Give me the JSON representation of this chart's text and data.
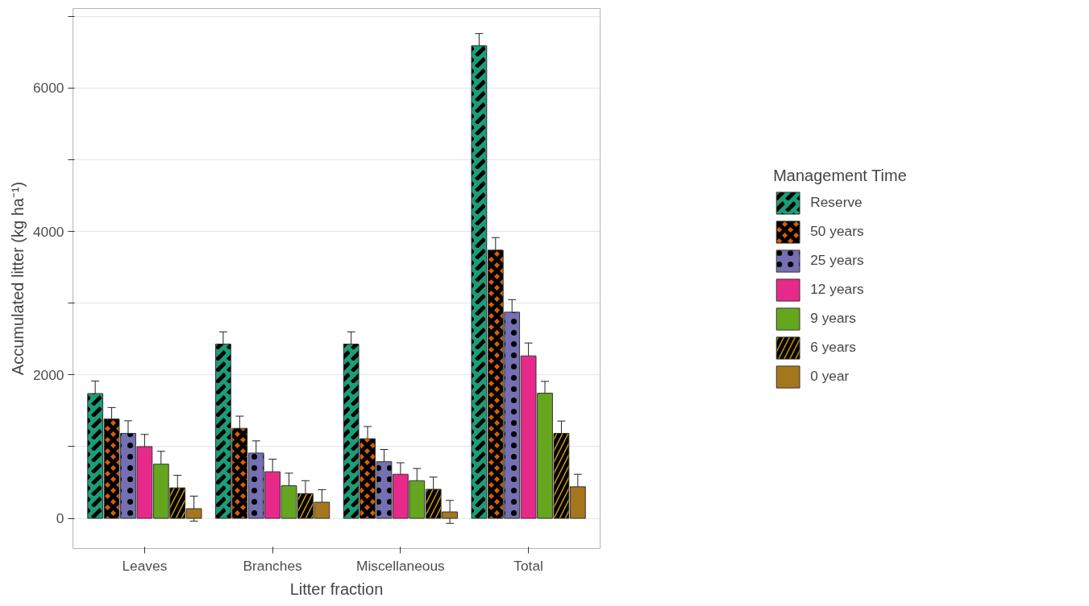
{
  "chart_data": {
    "type": "bar",
    "xlabel": "Litter fraction",
    "ylabel": "Accumulated litter (kg ha⁻¹)",
    "legend_title": "Management Time",
    "categories": [
      "Leaves",
      "Branches",
      "Miscellaneous",
      "Total"
    ],
    "series": [
      {
        "name": "Reserve",
        "color": "#1b9e77",
        "values": [
          1740,
          2430,
          2430,
          6590
        ],
        "errors": [
          175,
          170,
          170,
          170
        ]
      },
      {
        "name": "50 years",
        "color": "#d95f02",
        "values": [
          1385,
          1255,
          1110,
          3740
        ],
        "errors": [
          160,
          170,
          170,
          175
        ]
      },
      {
        "name": "25 years",
        "color": "#7570b3",
        "values": [
          1185,
          910,
          790,
          2875
        ],
        "errors": [
          175,
          170,
          170,
          175
        ]
      },
      {
        "name": "12 years",
        "color": "#e7298a",
        "values": [
          1000,
          650,
          615,
          2265
        ],
        "errors": [
          170,
          175,
          160,
          180
        ]
      },
      {
        "name": "9 years",
        "color": "#66a61e",
        "values": [
          755,
          455,
          525,
          1745
        ],
        "errors": [
          180,
          175,
          170,
          165
        ]
      },
      {
        "name": "6 years",
        "color": "#e6ab02",
        "values": [
          425,
          345,
          405,
          1185
        ],
        "errors": [
          175,
          180,
          170,
          172
        ]
      },
      {
        "name": "0 year",
        "color": "#a6761d",
        "values": [
          135,
          225,
          90,
          440
        ],
        "errors": [
          175,
          175,
          160,
          175
        ]
      }
    ],
    "ylim": [
      -420,
      7110
    ],
    "yticks": [
      0,
      {
        "value": 1000,
        "label": null
      },
      2000,
      {
        "value": 3000,
        "label": null
      },
      4000,
      {
        "value": 5000,
        "label": null
      },
      6000,
      {
        "value": 7000,
        "label": null
      }
    ],
    "grid": "y",
    "legend": "right"
  }
}
